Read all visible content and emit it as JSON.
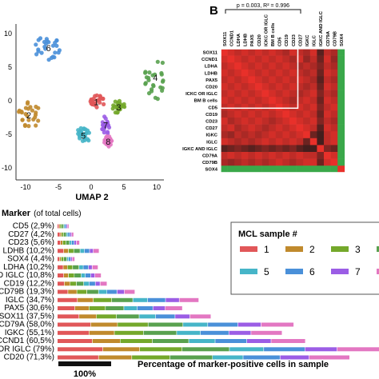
{
  "umap": {
    "xlabel": "UMAP 2",
    "x_ticks": [
      "-10",
      "-5",
      "0",
      "5",
      "10"
    ],
    "y_ticks": [
      "10",
      "5",
      "0",
      "-5",
      "-10"
    ],
    "clusters": [
      {
        "label": "1",
        "color": "#e15759"
      },
      {
        "label": "2",
        "color": "#c08a2d"
      },
      {
        "label": "3",
        "color": "#74a82b"
      },
      {
        "label": "4",
        "color": "#59a14f"
      },
      {
        "label": "5",
        "color": "#46b5c8"
      },
      {
        "label": "6",
        "color": "#4a90d9"
      },
      {
        "label": "7",
        "color": "#9b5de5"
      },
      {
        "label": "8",
        "color": "#e377c2"
      }
    ]
  },
  "panel_b": {
    "label": "B",
    "bracket_text": "p = 0.003,  R² = 0.996"
  },
  "panel_c": {
    "legend_title": "MCL sample #",
    "axis_note": "Percentage of marker-positive cells in sample",
    "scale_label": "100%"
  },
  "colors": {
    "heat_high": "#e8302a",
    "heat_low": "#1a1a1a",
    "heat_neg": "#3aa84a",
    "s1": "#e15759",
    "s2": "#c08a2d",
    "s3": "#74a82b",
    "s4": "#59a14f",
    "s5": "#46b5c8",
    "s6": "#4a90d9",
    "s7": "#9b5de5",
    "s8": "#e377c2"
  },
  "chart_data": [
    {
      "type": "scatter",
      "title": "",
      "xlabel": "UMAP 2",
      "ylabel": "",
      "xlim": [
        -12,
        12
      ],
      "ylim": [
        -12,
        12
      ],
      "series": [
        {
          "name": "1",
          "center": [
            0.8,
            0.2
          ]
        },
        {
          "name": "2",
          "center": [
            -9.5,
            -1.8
          ]
        },
        {
          "name": "3",
          "center": [
            4.2,
            -0.6
          ]
        },
        {
          "name": "4",
          "center": [
            9.8,
            3.8
          ]
        },
        {
          "name": "5",
          "center": [
            -1.2,
            -4.8
          ]
        },
        {
          "name": "6",
          "center": [
            -6.5,
            8.2
          ]
        },
        {
          "name": "7",
          "center": [
            2.2,
            -3.3
          ]
        },
        {
          "name": "8",
          "center": [
            2.6,
            -5.7
          ]
        }
      ],
      "grid": false
    },
    {
      "type": "heatmap",
      "rows": [
        "SOX11",
        "CCND1",
        "LDHA",
        "LDHB",
        "PAX5",
        "CD20",
        "ICKC OR IGLC",
        "BM B cells",
        "CD5",
        "CD19",
        "CD23",
        "CD27",
        "IGKC",
        "IGLC",
        "IGKC AND IGLC",
        "CD79A",
        "CD79B",
        "SOX4"
      ],
      "columns": [
        "SOX11",
        "CCND1",
        "LDHA",
        "LDHB",
        "PAX5",
        "CD20",
        "ICKC OR IGLC",
        "BM B cells",
        "CD5",
        "CD19",
        "CD23",
        "CD27",
        "IGKC",
        "IGLC",
        "IGKC AND IGLC",
        "CD79A",
        "CD79B",
        "SOX4"
      ],
      "values": [
        [
          1.0,
          0.9,
          0.8,
          0.9,
          0.8,
          0.9,
          0.8,
          0.9,
          0.8,
          0.7,
          0.9,
          0.8,
          0.7,
          0.9,
          0.3,
          0.8,
          0.7,
          -0.6
        ],
        [
          0.9,
          1.0,
          0.9,
          0.8,
          0.9,
          0.8,
          0.9,
          0.8,
          0.9,
          0.8,
          0.7,
          0.9,
          0.6,
          0.8,
          0.4,
          0.9,
          0.6,
          -0.5
        ],
        [
          0.8,
          0.9,
          1.0,
          0.9,
          0.8,
          0.9,
          0.8,
          0.9,
          0.8,
          0.9,
          0.8,
          0.7,
          0.8,
          0.7,
          0.5,
          0.8,
          0.7,
          -0.4
        ],
        [
          0.9,
          0.8,
          0.9,
          1.0,
          0.9,
          0.8,
          0.9,
          0.8,
          0.9,
          0.8,
          0.9,
          0.8,
          0.7,
          0.8,
          0.4,
          0.9,
          0.8,
          -0.5
        ],
        [
          0.8,
          0.9,
          0.8,
          0.9,
          1.0,
          0.9,
          0.8,
          0.9,
          0.8,
          0.9,
          0.8,
          0.9,
          0.8,
          0.7,
          0.3,
          0.8,
          0.7,
          -0.4
        ],
        [
          0.9,
          0.8,
          0.9,
          0.8,
          0.9,
          1.0,
          0.9,
          0.8,
          0.9,
          0.8,
          0.9,
          0.8,
          0.7,
          0.8,
          0.4,
          0.9,
          0.8,
          -0.5
        ],
        [
          0.8,
          0.9,
          0.8,
          0.9,
          0.8,
          0.9,
          1.0,
          0.9,
          0.8,
          0.9,
          0.8,
          0.7,
          0.8,
          0.9,
          0.5,
          0.8,
          0.7,
          -0.3
        ],
        [
          0.9,
          0.8,
          0.9,
          0.8,
          0.9,
          0.8,
          0.9,
          1.0,
          0.9,
          0.8,
          0.7,
          0.8,
          0.9,
          0.8,
          0.4,
          0.9,
          0.8,
          -0.4
        ],
        [
          0.8,
          0.9,
          0.8,
          0.9,
          0.8,
          0.9,
          0.8,
          0.9,
          1.0,
          0.9,
          0.8,
          0.9,
          0.8,
          0.9,
          0.5,
          0.8,
          0.9,
          -0.5
        ],
        [
          0.7,
          0.8,
          0.9,
          0.8,
          0.9,
          0.8,
          0.9,
          0.8,
          0.9,
          1.0,
          0.9,
          0.8,
          0.9,
          0.8,
          0.4,
          0.9,
          0.8,
          -0.4
        ],
        [
          0.9,
          0.7,
          0.8,
          0.9,
          0.8,
          0.9,
          0.8,
          0.7,
          0.8,
          0.9,
          1.0,
          0.9,
          0.8,
          0.9,
          0.5,
          0.8,
          0.7,
          -0.5
        ],
        [
          0.8,
          0.9,
          0.7,
          0.8,
          0.9,
          0.8,
          0.7,
          0.8,
          0.9,
          0.8,
          0.9,
          1.0,
          0.9,
          0.8,
          0.3,
          0.9,
          0.8,
          -0.4
        ],
        [
          0.7,
          0.6,
          0.8,
          0.7,
          0.8,
          0.7,
          0.8,
          0.9,
          0.8,
          0.9,
          0.8,
          0.9,
          1.0,
          0.4,
          0.2,
          0.8,
          0.9,
          -0.3
        ],
        [
          0.9,
          0.8,
          0.7,
          0.8,
          0.7,
          0.8,
          0.9,
          0.8,
          0.9,
          0.8,
          0.9,
          0.8,
          0.4,
          1.0,
          0.2,
          0.8,
          0.9,
          -0.4
        ],
        [
          0.3,
          0.4,
          0.5,
          0.4,
          0.3,
          0.4,
          0.5,
          0.4,
          0.5,
          0.4,
          0.5,
          0.3,
          0.2,
          0.2,
          1.0,
          0.5,
          0.4,
          -0.2
        ],
        [
          0.8,
          0.9,
          0.8,
          0.9,
          0.8,
          0.9,
          0.8,
          0.9,
          0.8,
          0.9,
          0.8,
          0.9,
          0.8,
          0.8,
          0.5,
          1.0,
          0.9,
          -0.5
        ],
        [
          0.7,
          0.6,
          0.7,
          0.8,
          0.7,
          0.8,
          0.7,
          0.8,
          0.9,
          0.8,
          0.7,
          0.8,
          0.9,
          0.9,
          0.4,
          0.9,
          1.0,
          -0.6
        ],
        [
          -0.6,
          -0.5,
          -0.4,
          -0.5,
          -0.4,
          -0.5,
          -0.3,
          -0.4,
          -0.5,
          -0.4,
          -0.5,
          -0.4,
          -0.3,
          -0.4,
          -0.2,
          -0.5,
          -0.6,
          1.0
        ]
      ]
    },
    {
      "type": "bar",
      "title": "Marker",
      "title_note": "(of total cells)",
      "xlabel": "Percentage of marker-positive cells in sample",
      "categories": [
        "CD5 (2,9%)",
        "CD27 (4,2%)",
        "CD23 (5,6%)",
        "LDHB (10,2%)",
        "SOX4 (4,4%)",
        "LDHA (10,2%)",
        "D IGLC (10,8%)",
        "CD19 (12,2%)",
        "CD79B (19,3%)",
        "IGLC (34,7%)",
        "PAX5 (30,6%)",
        "SOX11 (37,5%)",
        "CD79A (58,0%)",
        "IGKC (55,1%)",
        "CCND1 (60,5%)",
        "OR IGLC (79%)",
        "CD20 (71,3%)"
      ],
      "series": [
        {
          "name": "1",
          "values": [
            3,
            5,
            6,
            12,
            4,
            11,
            12,
            13,
            20,
            38,
            33,
            41,
            63,
            60,
            66,
            86,
            78
          ]
        },
        {
          "name": "2",
          "values": [
            2,
            3,
            4,
            9,
            3,
            8,
            9,
            11,
            17,
            30,
            27,
            33,
            51,
            48,
            53,
            70,
            63
          ]
        },
        {
          "name": "3",
          "values": [
            3,
            4,
            6,
            10,
            5,
            10,
            11,
            12,
            19,
            35,
            31,
            38,
            58,
            55,
            61,
            80,
            72
          ]
        },
        {
          "name": "4",
          "values": [
            4,
            5,
            7,
            12,
            6,
            12,
            13,
            14,
            22,
            40,
            35,
            43,
            66,
            63,
            69,
            90,
            81
          ]
        },
        {
          "name": "5",
          "values": [
            2,
            3,
            4,
            8,
            3,
            8,
            8,
            10,
            16,
            28,
            25,
            31,
            47,
            45,
            50,
            65,
            58
          ]
        },
        {
          "name": "6",
          "values": [
            3,
            4,
            5,
            10,
            4,
            10,
            10,
            12,
            19,
            34,
            30,
            37,
            57,
            54,
            60,
            78,
            70
          ]
        },
        {
          "name": "7",
          "values": [
            2,
            3,
            4,
            7,
            3,
            7,
            8,
            9,
            14,
            26,
            23,
            28,
            44,
            42,
            46,
            61,
            55
          ]
        },
        {
          "name": "8",
          "values": [
            3,
            4,
            6,
            11,
            5,
            11,
            12,
            13,
            20,
            37,
            33,
            40,
            62,
            59,
            65,
            85,
            77
          ]
        }
      ]
    }
  ]
}
